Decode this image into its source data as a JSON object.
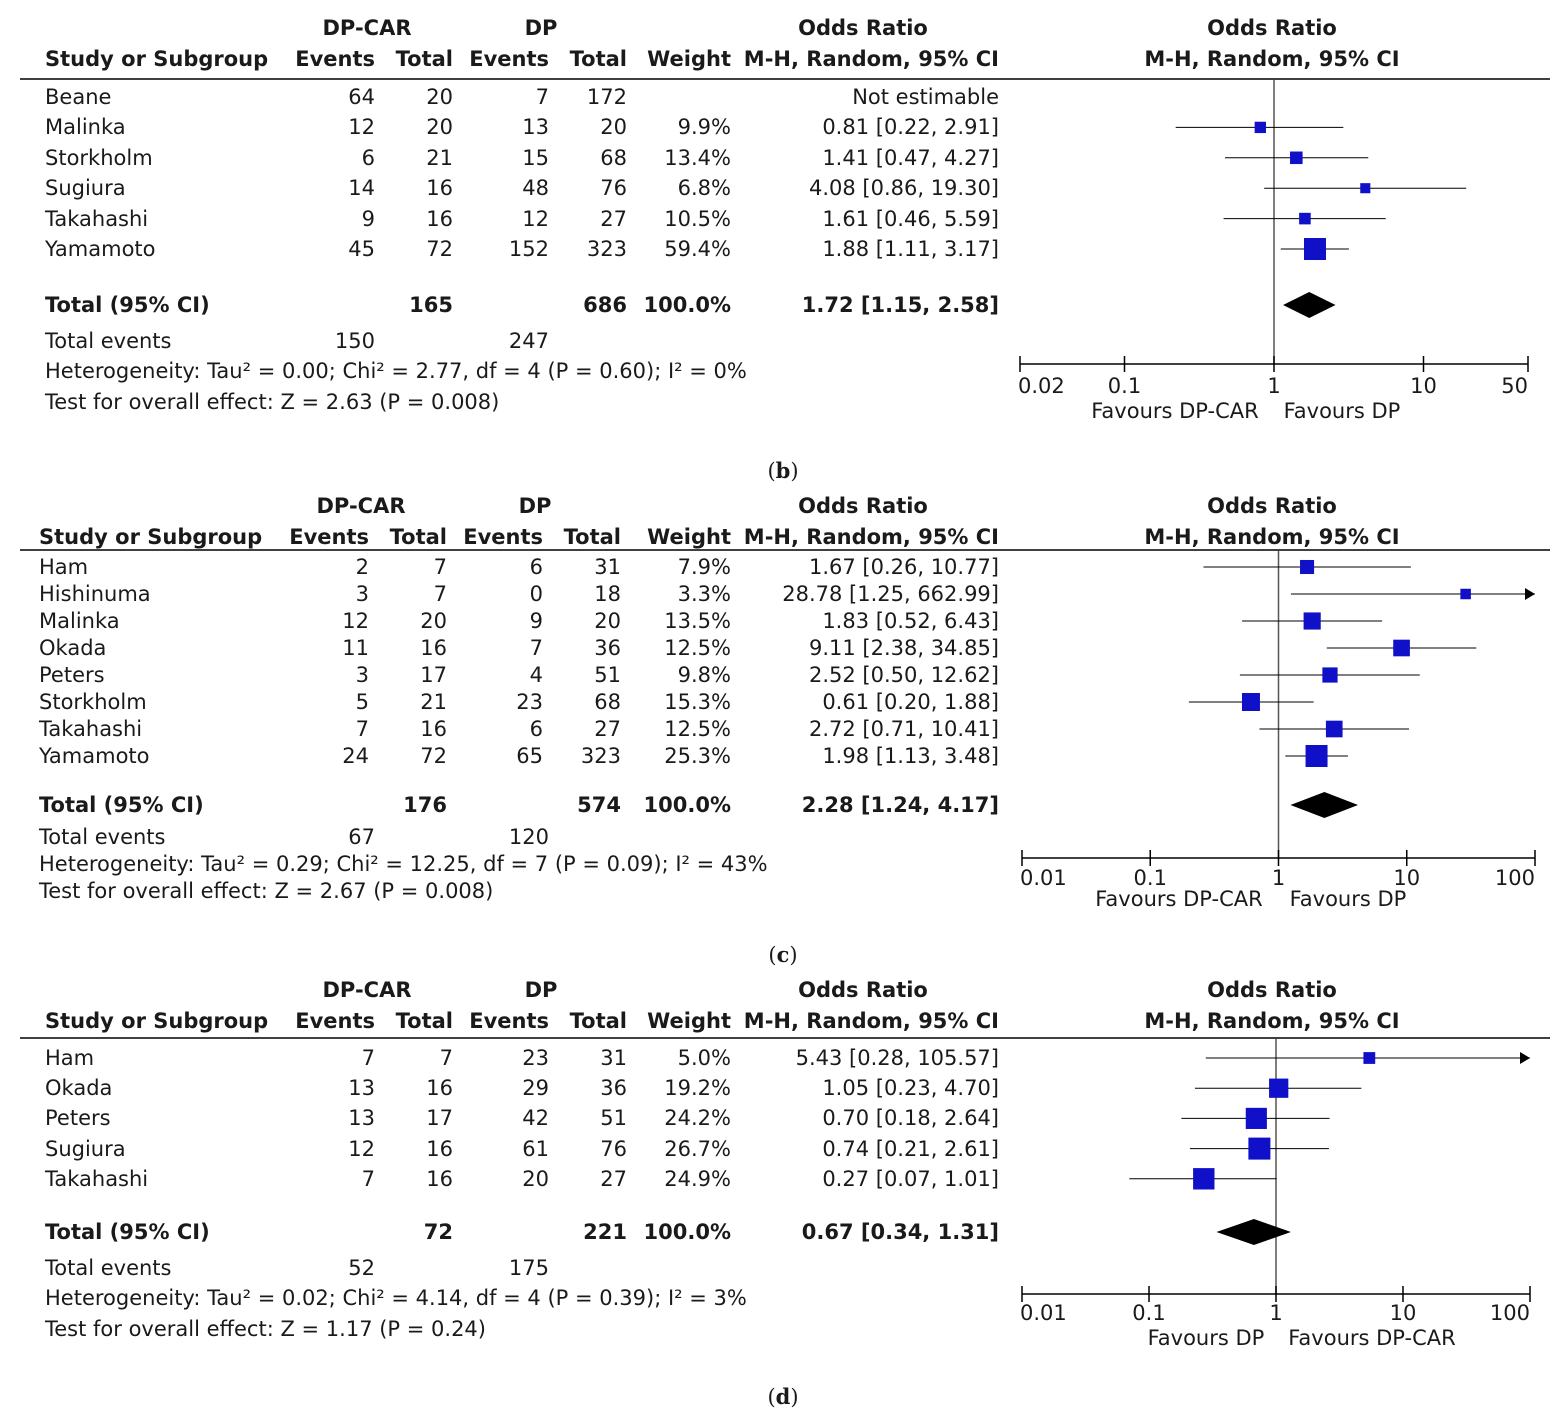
{
  "panels": [
    {
      "id": "b",
      "caption": "b",
      "header": {
        "exp_group": "DP-CAR",
        "ctl_group": "DP",
        "or_title": "Odds Ratio",
        "study_col": "Study or Subgroup",
        "events": "Events",
        "total": "Total",
        "weight": "Weight",
        "method": "M-H, Random, 95% CI",
        "plot_title": "Odds Ratio",
        "plot_method": "M-H, Random, 95% CI"
      },
      "rows": [
        {
          "study": "Beane",
          "e_ev": "64",
          "e_tot": "20",
          "c_ev": "7",
          "c_tot": "172",
          "weight": "",
          "ci": "Not estimable"
        },
        {
          "study": "Malinka",
          "e_ev": "12",
          "e_tot": "20",
          "c_ev": "13",
          "c_tot": "20",
          "weight": "9.9%",
          "ci": "0.81 [0.22, 2.91]"
        },
        {
          "study": "Storkholm",
          "e_ev": "6",
          "e_tot": "21",
          "c_ev": "15",
          "c_tot": "68",
          "weight": "13.4%",
          "ci": "1.41 [0.47, 4.27]"
        },
        {
          "study": "Sugiura",
          "e_ev": "14",
          "e_tot": "16",
          "c_ev": "48",
          "c_tot": "76",
          "weight": "6.8%",
          "ci": "4.08 [0.86, 19.30]"
        },
        {
          "study": "Takahashi",
          "e_ev": "9",
          "e_tot": "16",
          "c_ev": "12",
          "c_tot": "27",
          "weight": "10.5%",
          "ci": "1.61 [0.46, 5.59]"
        },
        {
          "study": "Yamamoto",
          "e_ev": "45",
          "e_tot": "72",
          "c_ev": "152",
          "c_tot": "323",
          "weight": "59.4%",
          "ci": "1.88 [1.11, 3.17]"
        }
      ],
      "total": {
        "label": "Total (95% CI)",
        "e_tot": "165",
        "c_tot": "686",
        "weight": "100.0%",
        "ci": "1.72 [1.15, 2.58]"
      },
      "events": {
        "label": "Total events",
        "e": "150",
        "c": "247"
      },
      "heterogeneity": "Heterogeneity: Tau² = 0.00; Chi² = 2.77, df = 4 (P = 0.60); I² = 0%",
      "overall": "Test for overall effect: Z = 2.63 (P = 0.008)",
      "favours_left": "Favours DP-CAR",
      "favours_right": "Favours DP"
    },
    {
      "id": "c",
      "caption": "c",
      "header": {
        "exp_group": "DP-CAR",
        "ctl_group": "DP",
        "or_title": "Odds Ratio",
        "study_col": "Study or Subgroup",
        "events": "Events",
        "total": "Total",
        "weight": "Weight",
        "method": "M-H, Random, 95% CI",
        "plot_title": "Odds Ratio",
        "plot_method": "M-H, Random, 95% CI"
      },
      "rows": [
        {
          "study": "Ham",
          "e_ev": "2",
          "e_tot": "7",
          "c_ev": "6",
          "c_tot": "31",
          "weight": "7.9%",
          "ci": "1.67 [0.26, 10.77]"
        },
        {
          "study": "Hishinuma",
          "e_ev": "3",
          "e_tot": "7",
          "c_ev": "0",
          "c_tot": "18",
          "weight": "3.3%",
          "ci": "28.78 [1.25, 662.99]"
        },
        {
          "study": "Malinka",
          "e_ev": "12",
          "e_tot": "20",
          "c_ev": "9",
          "c_tot": "20",
          "weight": "13.5%",
          "ci": "1.83 [0.52, 6.43]"
        },
        {
          "study": "Okada",
          "e_ev": "11",
          "e_tot": "16",
          "c_ev": "7",
          "c_tot": "36",
          "weight": "12.5%",
          "ci": "9.11 [2.38, 34.85]"
        },
        {
          "study": "Peters",
          "e_ev": "3",
          "e_tot": "17",
          "c_ev": "4",
          "c_tot": "51",
          "weight": "9.8%",
          "ci": "2.52 [0.50, 12.62]"
        },
        {
          "study": "Storkholm",
          "e_ev": "5",
          "e_tot": "21",
          "c_ev": "23",
          "c_tot": "68",
          "weight": "15.3%",
          "ci": "0.61 [0.20, 1.88]"
        },
        {
          "study": "Takahashi",
          "e_ev": "7",
          "e_tot": "16",
          "c_ev": "6",
          "c_tot": "27",
          "weight": "12.5%",
          "ci": "2.72 [0.71, 10.41]"
        },
        {
          "study": "Yamamoto",
          "e_ev": "24",
          "e_tot": "72",
          "c_ev": "65",
          "c_tot": "323",
          "weight": "25.3%",
          "ci": "1.98 [1.13, 3.48]"
        }
      ],
      "total": {
        "label": "Total (95% CI)",
        "e_tot": "176",
        "c_tot": "574",
        "weight": "100.0%",
        "ci": "2.28 [1.24, 4.17]"
      },
      "events": {
        "label": "Total events",
        "e": "67",
        "c": "120"
      },
      "heterogeneity": "Heterogeneity: Tau² = 0.29; Chi² = 12.25, df = 7 (P = 0.09); I² = 43%",
      "overall": "Test for overall effect: Z = 2.67 (P = 0.008)",
      "favours_left": "Favours DP-CAR",
      "favours_right": "Favours DP"
    },
    {
      "id": "d",
      "caption": "d",
      "header": {
        "exp_group": "DP-CAR",
        "ctl_group": "DP",
        "or_title": "Odds Ratio",
        "study_col": "Study or Subgroup",
        "events": "Events",
        "total": "Total",
        "weight": "Weight",
        "method": "M-H, Random, 95% CI",
        "plot_title": "Odds Ratio",
        "plot_method": "M-H, Random, 95% CI"
      },
      "rows": [
        {
          "study": "Ham",
          "e_ev": "7",
          "e_tot": "7",
          "c_ev": "23",
          "c_tot": "31",
          "weight": "5.0%",
          "ci": "5.43 [0.28, 105.57]"
        },
        {
          "study": "Okada",
          "e_ev": "13",
          "e_tot": "16",
          "c_ev": "29",
          "c_tot": "36",
          "weight": "19.2%",
          "ci": "1.05 [0.23, 4.70]"
        },
        {
          "study": "Peters",
          "e_ev": "13",
          "e_tot": "17",
          "c_ev": "42",
          "c_tot": "51",
          "weight": "24.2%",
          "ci": "0.70 [0.18, 2.64]"
        },
        {
          "study": "Sugiura",
          "e_ev": "12",
          "e_tot": "16",
          "c_ev": "61",
          "c_tot": "76",
          "weight": "26.7%",
          "ci": "0.74 [0.21, 2.61]"
        },
        {
          "study": "Takahashi",
          "e_ev": "7",
          "e_tot": "16",
          "c_ev": "20",
          "c_tot": "27",
          "weight": "24.9%",
          "ci": "0.27 [0.07, 1.01]"
        }
      ],
      "total": {
        "label": "Total (95% CI)",
        "e_tot": "72",
        "c_tot": "221",
        "weight": "100.0%",
        "ci": "0.67 [0.34, 1.31]"
      },
      "events": {
        "label": "Total events",
        "e": "52",
        "c": "175"
      },
      "heterogeneity": "Heterogeneity: Tau² = 0.02; Chi² = 4.14, df = 4 (P = 0.39); I² = 3%",
      "overall": "Test for overall effect: Z = 1.17 (P = 0.24)",
      "favours_left": "Favours DP",
      "favours_right": "Favours DP-CAR"
    }
  ],
  "chart_data": [
    {
      "type": "forest",
      "panel": "b",
      "axis_scale": "log",
      "xlim": [
        0.02,
        50
      ],
      "ticks": [
        0.02,
        0.1,
        1,
        10,
        50
      ],
      "tick_labels": [
        "0.02",
        "0.1",
        "1",
        "10",
        "50"
      ],
      "studies": [
        {
          "name": "Malinka",
          "or": 0.81,
          "lo": 0.22,
          "hi": 2.91,
          "weight": 9.9
        },
        {
          "name": "Storkholm",
          "or": 1.41,
          "lo": 0.47,
          "hi": 4.27,
          "weight": 13.4
        },
        {
          "name": "Sugiura",
          "or": 4.08,
          "lo": 0.86,
          "hi": 19.3,
          "weight": 6.8
        },
        {
          "name": "Takahashi",
          "or": 1.61,
          "lo": 0.46,
          "hi": 5.59,
          "weight": 10.5
        },
        {
          "name": "Yamamoto",
          "or": 1.88,
          "lo": 1.11,
          "hi": 3.17,
          "weight": 59.4
        }
      ],
      "pooled": {
        "or": 1.72,
        "lo": 1.15,
        "hi": 2.58
      }
    },
    {
      "type": "forest",
      "panel": "c",
      "axis_scale": "log",
      "xlim": [
        0.01,
        100
      ],
      "ticks": [
        0.01,
        0.1,
        1,
        10,
        100
      ],
      "tick_labels": [
        "0.01",
        "0.1",
        "1",
        "10",
        "100"
      ],
      "studies": [
        {
          "name": "Ham",
          "or": 1.67,
          "lo": 0.26,
          "hi": 10.77,
          "weight": 7.9
        },
        {
          "name": "Hishinuma",
          "or": 28.78,
          "lo": 1.25,
          "hi": 662.99,
          "weight": 3.3
        },
        {
          "name": "Malinka",
          "or": 1.83,
          "lo": 0.52,
          "hi": 6.43,
          "weight": 13.5
        },
        {
          "name": "Okada",
          "or": 9.11,
          "lo": 2.38,
          "hi": 34.85,
          "weight": 12.5
        },
        {
          "name": "Peters",
          "or": 2.52,
          "lo": 0.5,
          "hi": 12.62,
          "weight": 9.8
        },
        {
          "name": "Storkholm",
          "or": 0.61,
          "lo": 0.2,
          "hi": 1.88,
          "weight": 15.3
        },
        {
          "name": "Takahashi",
          "or": 2.72,
          "lo": 0.71,
          "hi": 10.41,
          "weight": 12.5
        },
        {
          "name": "Yamamoto",
          "or": 1.98,
          "lo": 1.13,
          "hi": 3.48,
          "weight": 25.3
        }
      ],
      "pooled": {
        "or": 2.28,
        "lo": 1.24,
        "hi": 4.17
      }
    },
    {
      "type": "forest",
      "panel": "d",
      "axis_scale": "log",
      "xlim": [
        0.01,
        100
      ],
      "ticks": [
        0.01,
        0.1,
        1,
        10,
        100
      ],
      "tick_labels": [
        "0.01",
        "0.1",
        "1",
        "10",
        "100"
      ],
      "studies": [
        {
          "name": "Ham",
          "or": 5.43,
          "lo": 0.28,
          "hi": 105.57,
          "weight": 5.0
        },
        {
          "name": "Okada",
          "or": 1.05,
          "lo": 0.23,
          "hi": 4.7,
          "weight": 19.2
        },
        {
          "name": "Peters",
          "or": 0.7,
          "lo": 0.18,
          "hi": 2.64,
          "weight": 24.2
        },
        {
          "name": "Sugiura",
          "or": 0.74,
          "lo": 0.21,
          "hi": 2.61,
          "weight": 26.7
        },
        {
          "name": "Takahashi",
          "or": 0.27,
          "lo": 0.07,
          "hi": 1.01,
          "weight": 24.9
        }
      ],
      "pooled": {
        "or": 0.67,
        "lo": 0.34,
        "hi": 1.31
      }
    }
  ],
  "colors": {
    "marker": "#1010c8",
    "pooled": "#000000",
    "line": "#000000",
    "text": "#1a1a1a"
  }
}
